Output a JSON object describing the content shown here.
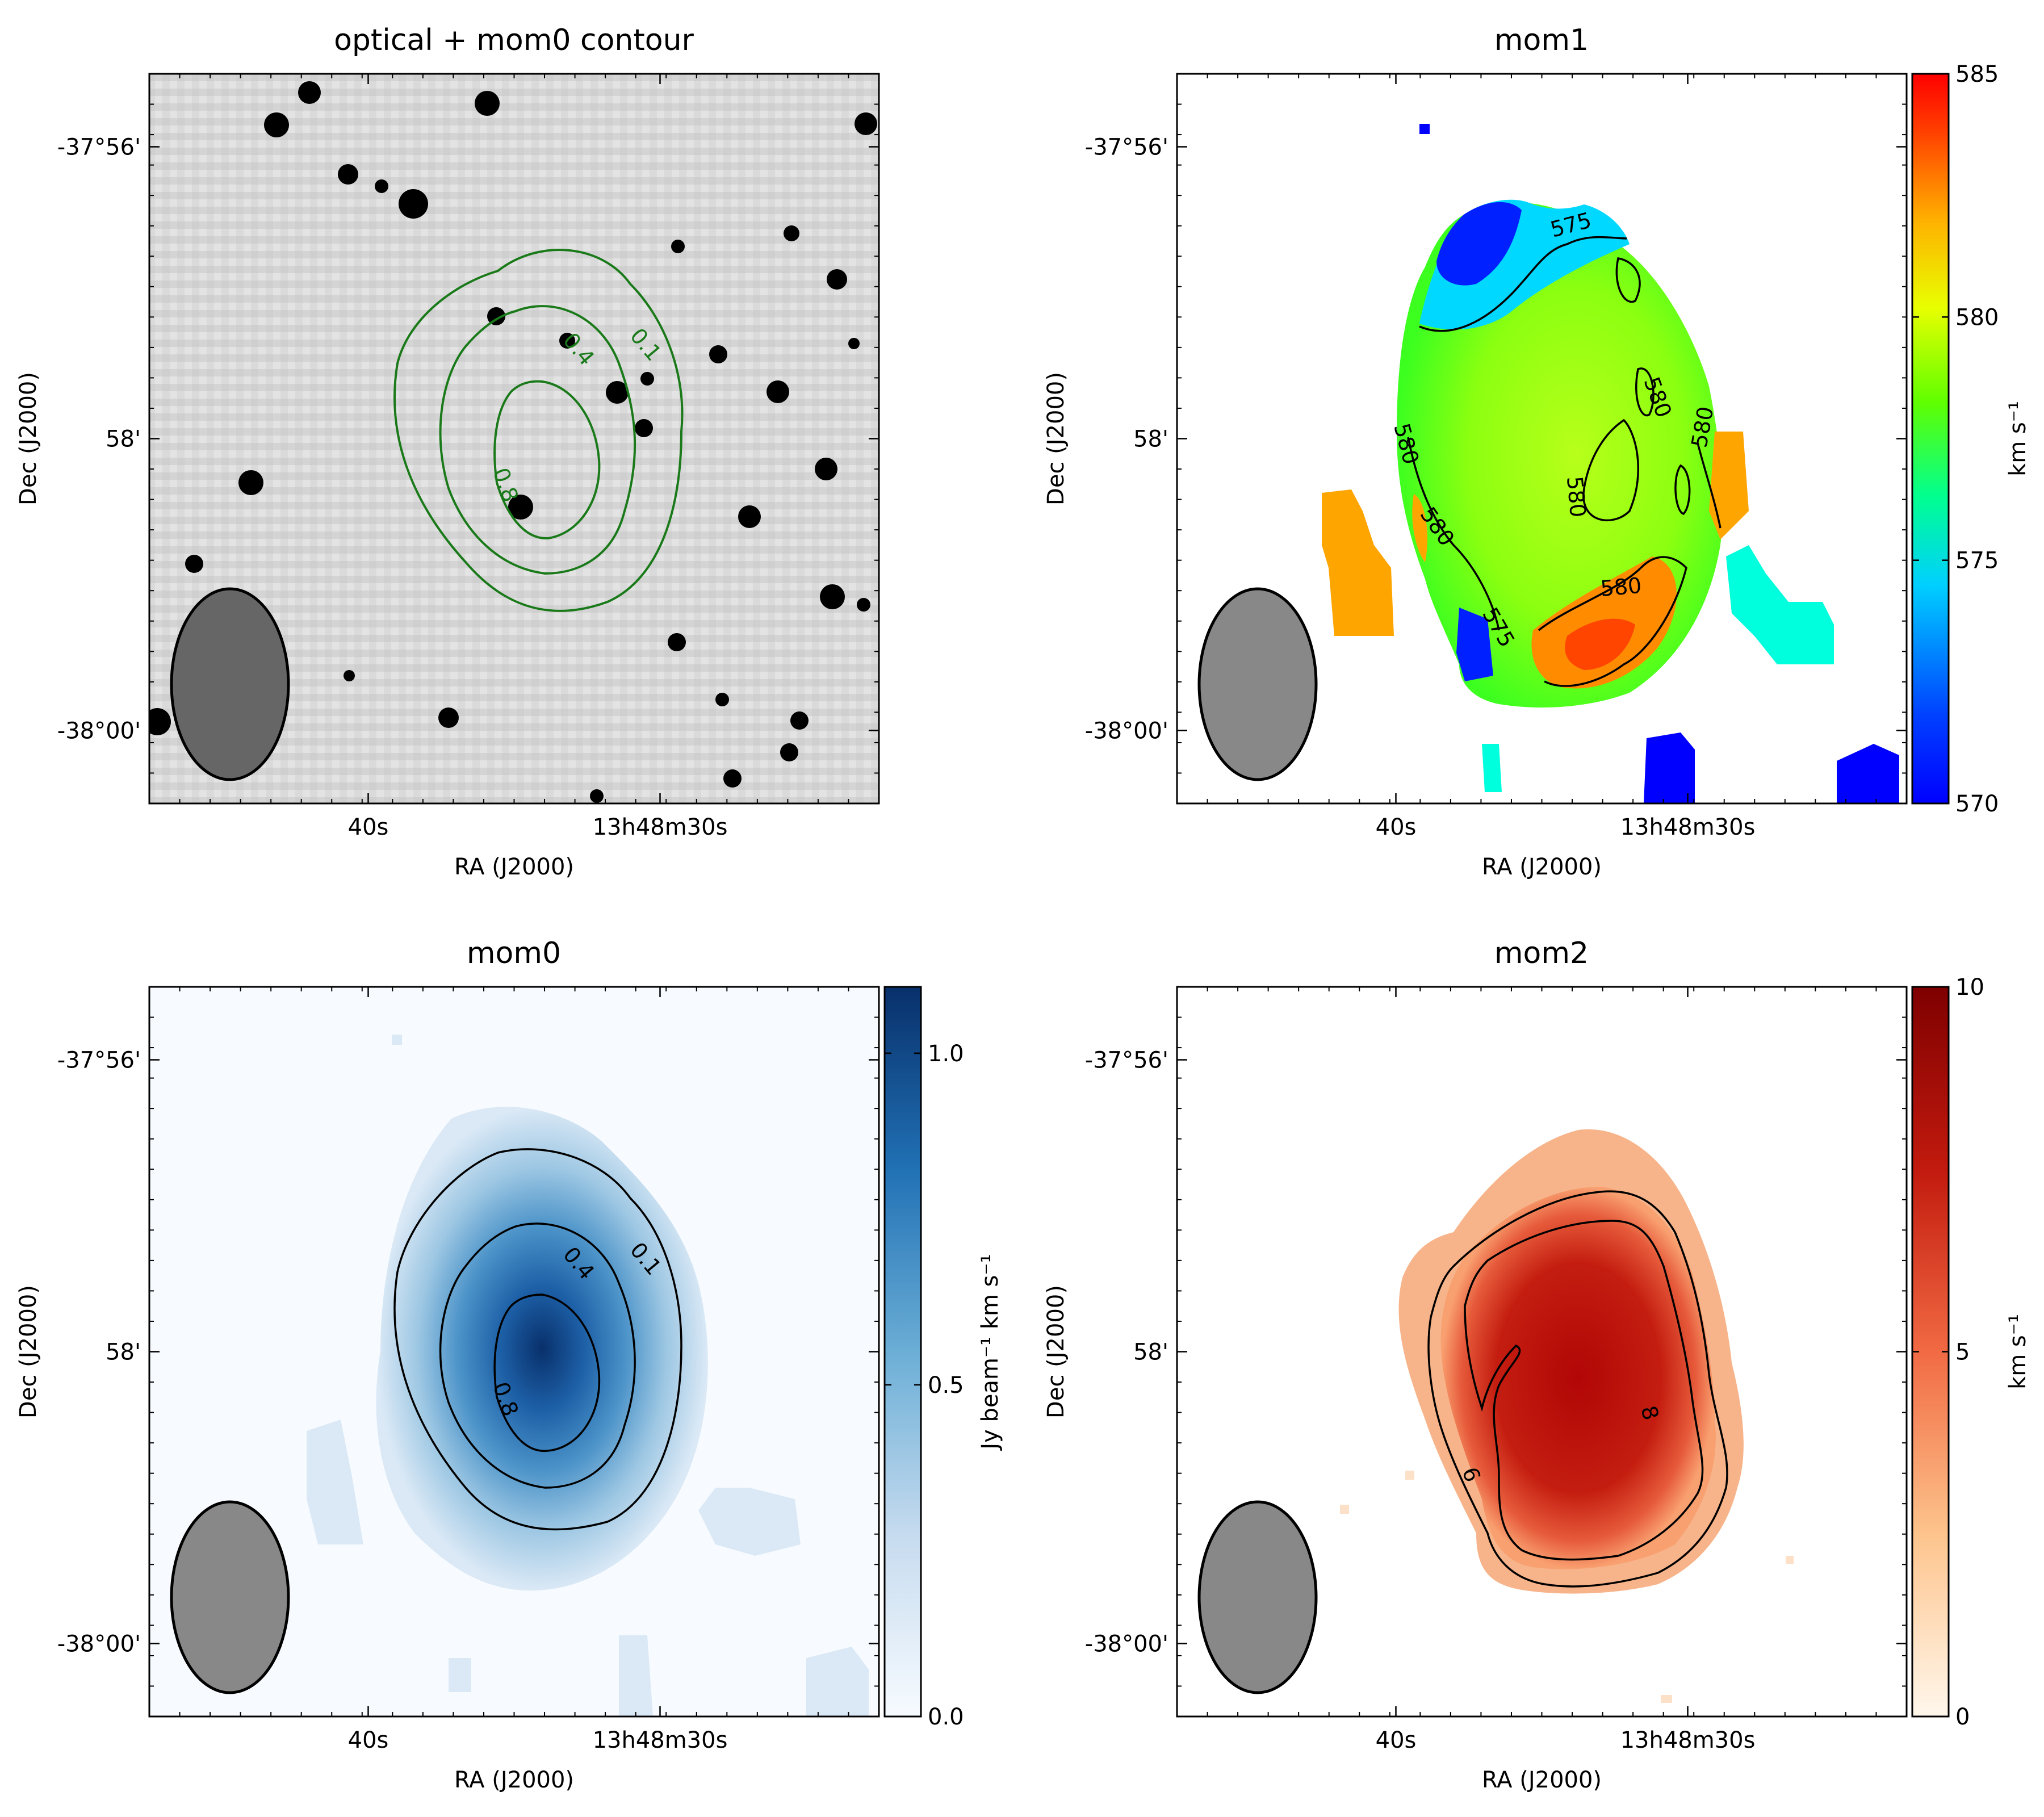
{
  "figure": {
    "panels": [
      "optical",
      "mom1",
      "mom0",
      "mom2"
    ]
  },
  "chart_data": [
    {
      "id": "optical",
      "type": "heatmap",
      "title": "optical + mom0 contour",
      "xlabel": "RA (J2000)",
      "ylabel": "Dec (J2000)",
      "xticks": [
        "40s",
        "13h48m30s"
      ],
      "yticks": [
        "-37°56'",
        "58'",
        "-38°00'"
      ],
      "colormap": "gray_r",
      "contour_color": "#1a7a1a",
      "contours": [
        {
          "level": 0.1,
          "label": "0.1"
        },
        {
          "level": 0.4,
          "label": "0.4"
        },
        {
          "level": 0.8,
          "label": "0.8"
        }
      ],
      "beam": true
    },
    {
      "id": "mom1",
      "type": "heatmap",
      "title": "mom1",
      "xlabel": "RA (J2000)",
      "ylabel": "Dec (J2000)",
      "xticks": [
        "40s",
        "13h48m30s"
      ],
      "yticks": [
        "-37°56'",
        "58'",
        "-38°00'"
      ],
      "colormap": "jet",
      "colorbar": {
        "label": "km s⁻¹",
        "ticks": [
          "570",
          "575",
          "580",
          "585"
        ],
        "range": [
          570,
          585
        ]
      },
      "contours": [
        {
          "level": 575,
          "label": "575"
        },
        {
          "level": 580,
          "label": "580"
        }
      ],
      "beam": true
    },
    {
      "id": "mom0",
      "type": "heatmap",
      "title": "mom0",
      "xlabel": "RA (J2000)",
      "ylabel": "Dec (J2000)",
      "xticks": [
        "40s",
        "13h48m30s"
      ],
      "yticks": [
        "-37°56'",
        "58'",
        "-38°00'"
      ],
      "colormap": "Blues",
      "colorbar": {
        "label": "Jy beam⁻¹ km s⁻¹",
        "ticks": [
          "0.0",
          "0.5",
          "1.0"
        ],
        "range": [
          0,
          1.1
        ]
      },
      "contours": [
        {
          "level": 0.1,
          "label": "0.1"
        },
        {
          "level": 0.4,
          "label": "0.4"
        },
        {
          "level": 0.8,
          "label": "0.8"
        }
      ],
      "beam": true
    },
    {
      "id": "mom2",
      "type": "heatmap",
      "title": "mom2",
      "xlabel": "RA (J2000)",
      "ylabel": "Dec (J2000)",
      "xticks": [
        "40s",
        "13h48m30s"
      ],
      "yticks": [
        "-37°56'",
        "58'",
        "-38°00'"
      ],
      "colormap": "OrRd",
      "colorbar": {
        "label": "km s⁻¹",
        "ticks": [
          "0",
          "5",
          "10"
        ],
        "range": [
          0,
          10
        ]
      },
      "contours": [
        {
          "level": 6,
          "label": "6"
        },
        {
          "level": 8,
          "label": "8"
        }
      ],
      "beam": true
    }
  ]
}
